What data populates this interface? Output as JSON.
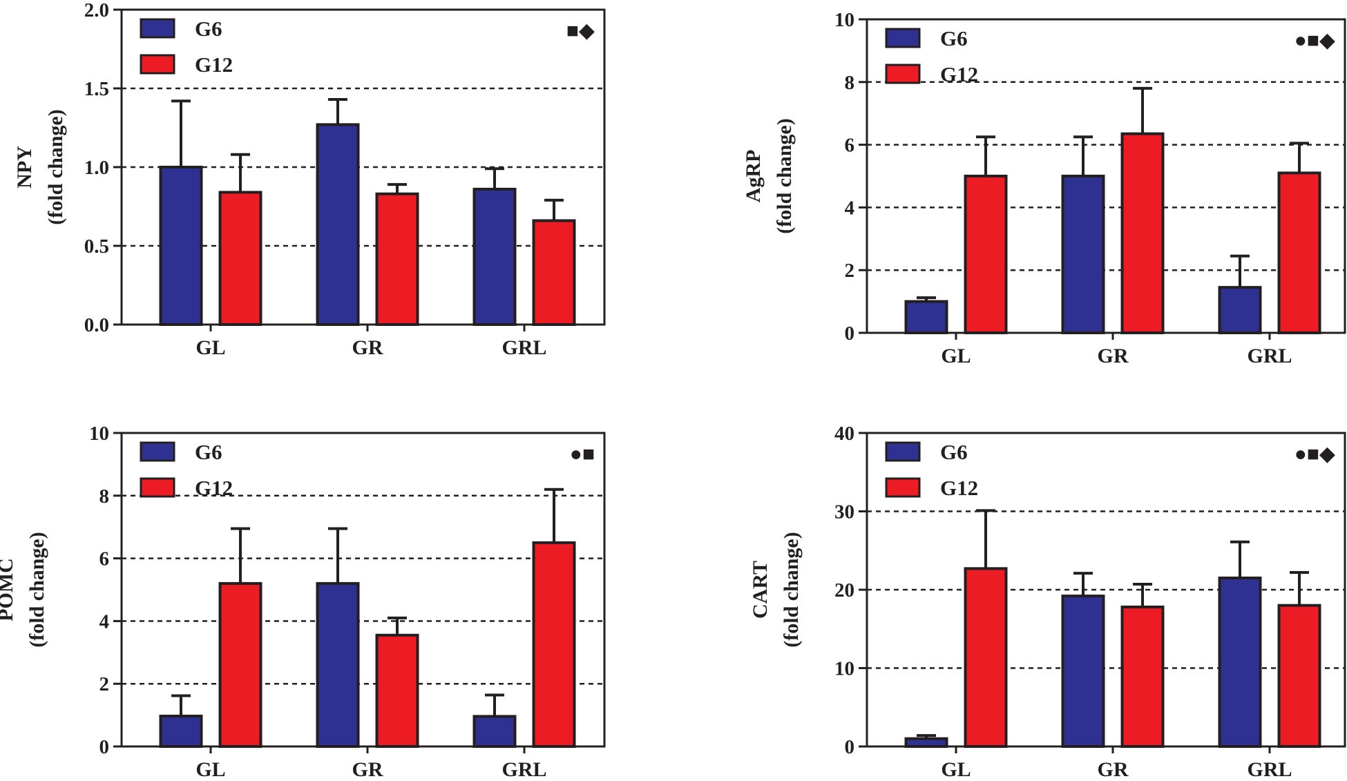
{
  "colors": {
    "g6": "#2e3192",
    "g12": "#ed1c24",
    "axis": "#231f20"
  },
  "chart_data": [
    {
      "type": "bar",
      "categories": [
        "GL",
        "GR",
        "GRL"
      ],
      "ylabel": [
        "NPY",
        "(fold change)"
      ],
      "ylim": [
        0,
        2.0
      ],
      "yticks": [
        "0.0",
        "0.5",
        "1.0",
        "1.5",
        "2.0"
      ],
      "ytick_values": [
        0,
        0.5,
        1.0,
        1.5,
        2.0
      ],
      "grid_values": [
        0.5,
        1.0,
        1.5
      ],
      "legend": [
        "G6",
        "G12"
      ],
      "significance": [
        "■",
        "◆"
      ],
      "series": [
        {
          "name": "G6",
          "values": [
            1.0,
            1.27,
            0.86
          ],
          "errors": [
            0.42,
            0.16,
            0.13
          ]
        },
        {
          "name": "G12",
          "values": [
            0.84,
            0.83,
            0.66
          ],
          "errors": [
            0.24,
            0.06,
            0.13
          ]
        }
      ]
    },
    {
      "type": "bar",
      "categories": [
        "GL",
        "GR",
        "GRL"
      ],
      "ylabel": [
        "AgRP",
        "(fold change)"
      ],
      "ylim": [
        0,
        10
      ],
      "yticks": [
        "0",
        "2",
        "4",
        "6",
        "8",
        "10"
      ],
      "ytick_values": [
        0,
        2,
        4,
        6,
        8,
        10
      ],
      "grid_values": [
        2,
        4,
        6,
        8
      ],
      "legend": [
        "G6",
        "G12"
      ],
      "significance": [
        "●",
        "■",
        "◆"
      ],
      "series": [
        {
          "name": "G6",
          "values": [
            1.0,
            5.0,
            1.45
          ],
          "errors": [
            0.12,
            1.25,
            1.0
          ]
        },
        {
          "name": "G12",
          "values": [
            5.0,
            6.35,
            5.1
          ],
          "errors": [
            1.25,
            1.45,
            0.95
          ]
        }
      ]
    },
    {
      "type": "bar",
      "categories": [
        "GL",
        "GR",
        "GRL"
      ],
      "ylabel": [
        "POMC",
        "(fold change)"
      ],
      "ylim": [
        0,
        10
      ],
      "yticks": [
        "0",
        "2",
        "4",
        "6",
        "8",
        "10"
      ],
      "ytick_values": [
        0,
        2,
        4,
        6,
        8,
        10
      ],
      "grid_values": [
        2,
        4,
        6,
        8
      ],
      "legend": [
        "G6",
        "G12"
      ],
      "significance": [
        "●",
        "■"
      ],
      "series": [
        {
          "name": "G6",
          "values": [
            0.97,
            5.2,
            0.96
          ],
          "errors": [
            0.65,
            1.75,
            0.68
          ]
        },
        {
          "name": "G12",
          "values": [
            5.2,
            3.55,
            6.5
          ],
          "errors": [
            1.75,
            0.55,
            1.7
          ]
        }
      ]
    },
    {
      "type": "bar",
      "categories": [
        "GL",
        "GR",
        "GRL"
      ],
      "ylabel": [
        "CART",
        "(fold change)"
      ],
      "ylim": [
        0,
        40
      ],
      "yticks": [
        "0",
        "10",
        "20",
        "30",
        "40"
      ],
      "ytick_values": [
        0,
        10,
        20,
        30,
        40
      ],
      "grid_values": [
        10,
        20,
        30
      ],
      "legend": [
        "G6",
        "G12"
      ],
      "significance": [
        "●",
        "■",
        "◆"
      ],
      "series": [
        {
          "name": "G6",
          "values": [
            1.0,
            19.2,
            21.5
          ],
          "errors": [
            0.4,
            2.9,
            4.6
          ]
        },
        {
          "name": "G12",
          "values": [
            22.7,
            17.8,
            18.0
          ],
          "errors": [
            7.4,
            2.9,
            4.2
          ]
        }
      ]
    }
  ]
}
